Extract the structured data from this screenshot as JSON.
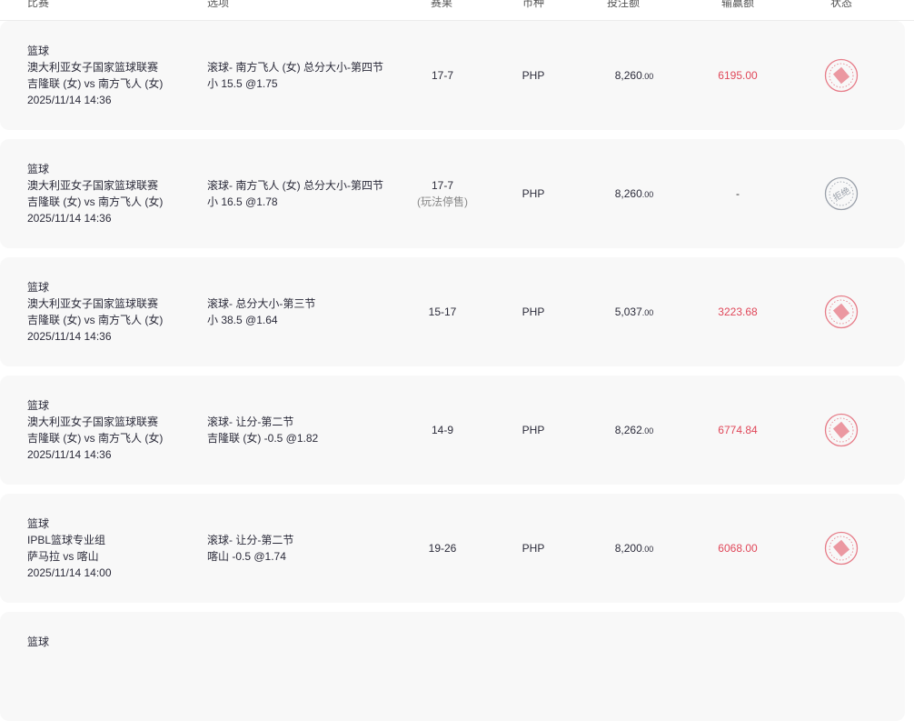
{
  "header": {
    "cols": [
      "比赛",
      "选项",
      "赛果",
      "币种",
      "投注额",
      "输赢额",
      "状态"
    ]
  },
  "rows": [
    {
      "sport": "篮球",
      "league": "澳大利亚女子国家篮球联赛",
      "match": "吉隆联 (女) vs 南方飞人 (女)",
      "time": "2025/11/14 14:36",
      "market": "滚球- 南方飞人 (女) 总分大小-第四节",
      "selection": "小 15.5 @1.75",
      "result": "17-7",
      "result_note": "",
      "currency": "PHP",
      "stake": "8,260",
      "stake_dec": ".00",
      "winloss": "6195.00",
      "status": "won-stamp",
      "status_color": "#e0485a"
    },
    {
      "sport": "篮球",
      "league": "澳大利亚女子国家篮球联赛",
      "match": "吉隆联 (女) vs 南方飞人 (女)",
      "time": "2025/11/14 14:36",
      "market": "滚球- 南方飞人 (女) 总分大小-第四节",
      "selection": "小 16.5 @1.78",
      "result": "17-7",
      "result_note": "(玩法停售)",
      "currency": "PHP",
      "stake": "8,260",
      "stake_dec": ".00",
      "winloss": "-",
      "status": "拒绝",
      "status_color": "#9aa0aa"
    },
    {
      "sport": "篮球",
      "league": "澳大利亚女子国家篮球联赛",
      "match": "吉隆联 (女) vs 南方飞人 (女)",
      "time": "2025/11/14 14:36",
      "market": "滚球- 总分大小-第三节",
      "selection": "小 38.5 @1.64",
      "result": "15-17",
      "result_note": "",
      "currency": "PHP",
      "stake": "5,037",
      "stake_dec": ".00",
      "winloss": "3223.68",
      "status": "won-stamp",
      "status_color": "#e0485a"
    },
    {
      "sport": "篮球",
      "league": "澳大利亚女子国家篮球联赛",
      "match": "吉隆联 (女) vs 南方飞人 (女)",
      "time": "2025/11/14 14:36",
      "market": "滚球- 让分-第二节",
      "selection": "吉隆联 (女) -0.5 @1.82",
      "result": "14-9",
      "result_note": "",
      "currency": "PHP",
      "stake": "8,262",
      "stake_dec": ".00",
      "winloss": "6774.84",
      "status": "won-stamp",
      "status_color": "#e0485a"
    },
    {
      "sport": "篮球",
      "league": "IPBL篮球专业组",
      "match": "萨马拉 vs 喀山",
      "time": "2025/11/14 14:00",
      "market": "滚球- 让分-第二节",
      "selection": "喀山 -0.5 @1.74",
      "result": "19-26",
      "result_note": "",
      "currency": "PHP",
      "stake": "8,200",
      "stake_dec": ".00",
      "winloss": "6068.00",
      "status": "won-stamp",
      "status_color": "#e0485a"
    },
    {
      "sport": "篮球"
    }
  ]
}
